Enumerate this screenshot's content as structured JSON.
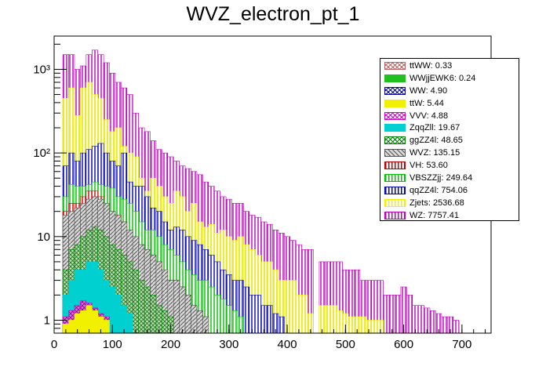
{
  "chart_data": {
    "type": "bar",
    "style": "stacked-histogram",
    "title": "WVZ_electron_pt_1",
    "xlabel": "",
    "ylabel": "",
    "yscale": "log",
    "xlim": [
      0,
      750
    ],
    "ylim": [
      0.7,
      2500
    ],
    "bin_width": 10,
    "x_start": 15,
    "x_ticks": [
      "0",
      "100",
      "200",
      "300",
      "400",
      "500",
      "600",
      "700"
    ],
    "y_ticks": [
      "1",
      "10",
      "10²",
      "10³"
    ],
    "legend_position": "top-right",
    "stack_totals": [
      1500,
      1500,
      1000,
      1100,
      1500,
      1700,
      1500,
      1200,
      900,
      700,
      600,
      500,
      300,
      200,
      180,
      140,
      110,
      100,
      90,
      80,
      70,
      65,
      60,
      55,
      45,
      40,
      35,
      30,
      28,
      25,
      25,
      20,
      18,
      17,
      15,
      14,
      12,
      11,
      10,
      9,
      8,
      7,
      7,
      0,
      5,
      5,
      5,
      5,
      4,
      4,
      4,
      3,
      3,
      3,
      3,
      2,
      2,
      2,
      2.5,
      2,
      1.5,
      1.5,
      1.4,
      1.3,
      1.2,
      1.1,
      1.1,
      1.0
    ],
    "series": [
      {
        "name": "WZ: 7757.41",
        "color": "#c000c0",
        "fill": "vertical-hatch",
        "values": [
          1500,
          1500,
          1000,
          1100,
          1500,
          1700,
          1500,
          1200,
          900,
          700,
          600,
          500,
          300,
          200,
          180,
          140,
          110,
          100,
          90,
          80,
          70,
          65,
          60,
          55,
          45,
          40,
          35,
          30,
          28,
          25,
          25,
          20,
          18,
          17,
          15,
          14,
          12,
          11,
          10,
          9,
          8,
          7,
          7,
          0,
          5,
          5,
          5,
          5,
          4,
          4,
          4,
          3,
          3,
          3,
          3,
          2,
          2,
          2,
          2.5,
          2,
          1.5,
          1.5,
          1.4,
          1.3,
          1.2,
          1.1,
          1.1,
          1.0
        ]
      },
      {
        "name": "Zjets: 2536.68",
        "color": "#f0f000",
        "fill": "vertical-hatch",
        "values": [
          450,
          600,
          280,
          600,
          700,
          500,
          450,
          250,
          180,
          200,
          120,
          100,
          90,
          50,
          35,
          50,
          40,
          30,
          25,
          35,
          30,
          20,
          25,
          15,
          13,
          14,
          11,
          12,
          10,
          9,
          10,
          8,
          7,
          6,
          5,
          5,
          4,
          3,
          3,
          3,
          2,
          2,
          1.2,
          0,
          1.5,
          1.5,
          1.5,
          1.3,
          1.2,
          1.1,
          1.1,
          1.1,
          1.0,
          1.0,
          1.0
        ]
      },
      {
        "name": "qqZZ4l: 754.06",
        "color": "#0000c0",
        "fill": "vertical-hatch",
        "values": [
          70,
          100,
          80,
          100,
          110,
          120,
          130,
          100,
          80,
          70,
          100,
          45,
          40,
          40,
          30,
          22,
          20,
          15,
          12,
          13,
          12,
          10,
          9,
          8,
          7,
          6,
          5,
          4,
          3.5,
          3,
          3,
          2.5,
          2,
          2,
          1.5,
          1.5,
          1.2,
          1.1
        ]
      },
      {
        "name": "VBSZZjj: 249.64",
        "color": "#00c000",
        "fill": "vertical-hatch",
        "values": [
          30,
          42,
          40,
          40,
          42,
          45,
          42,
          40,
          38,
          30,
          28,
          25,
          20,
          15,
          12,
          12,
          10,
          8,
          7,
          6,
          5,
          4,
          3.5,
          3,
          3,
          2.5,
          2,
          1.8,
          1.5,
          1.3,
          1.1
        ]
      },
      {
        "name": "VH: 53.60",
        "color": "#c00000",
        "fill": "vertical-hatch",
        "values": [
          20,
          25,
          25,
          30,
          35,
          35,
          30,
          25,
          20,
          18,
          15,
          12,
          10,
          8,
          7,
          6,
          5,
          4,
          3,
          3,
          2.5,
          2,
          1.5,
          1.3,
          1.1
        ]
      },
      {
        "name": "WVZ: 135.15",
        "color": "#555555",
        "fill": "diagonal-hatch",
        "values": [
          18,
          20,
          22,
          25,
          28,
          30,
          28,
          25,
          20,
          18,
          15,
          12,
          10,
          8,
          7,
          6,
          5,
          4,
          3,
          3,
          2.5,
          2,
          1.5,
          1.3,
          1.1
        ]
      },
      {
        "name": "ggZZ4l: 48.65",
        "color": "#008000",
        "fill": "crosshatch",
        "values": [
          4,
          7,
          8,
          10,
          12,
          13,
          12,
          10,
          8,
          7,
          6,
          5,
          4,
          3,
          2.5,
          2,
          1.5,
          1.3,
          1.1
        ]
      },
      {
        "name": "ZqqZll: 19.67",
        "color": "#00d0d0",
        "fill": "solid",
        "values": [
          2,
          3,
          4,
          4,
          5,
          5,
          4,
          3,
          2.5,
          2,
          1.5,
          1.2
        ]
      },
      {
        "name": "VVV: 4.88",
        "color": "#d000d0",
        "fill": "crosshatch",
        "values": [
          1.1,
          1.3,
          1.5,
          1.7,
          1.6,
          1.4,
          1.2,
          1.1
        ]
      },
      {
        "name": "ttW: 5.44",
        "color": "#f0f000",
        "fill": "solid",
        "values": [
          0.9,
          1.0,
          1.2,
          1.3,
          1.5,
          1.3,
          1.1,
          1.0
        ]
      },
      {
        "name": "WW: 4.90",
        "color": "#0000a0",
        "fill": "crosshatch",
        "values": []
      },
      {
        "name": "WWjjEWK6: 0.24",
        "color": "#20c020",
        "fill": "solid",
        "values": []
      },
      {
        "name": "ttWW: 0.33",
        "color": "#c06060",
        "fill": "crosshatch",
        "values": []
      }
    ]
  }
}
